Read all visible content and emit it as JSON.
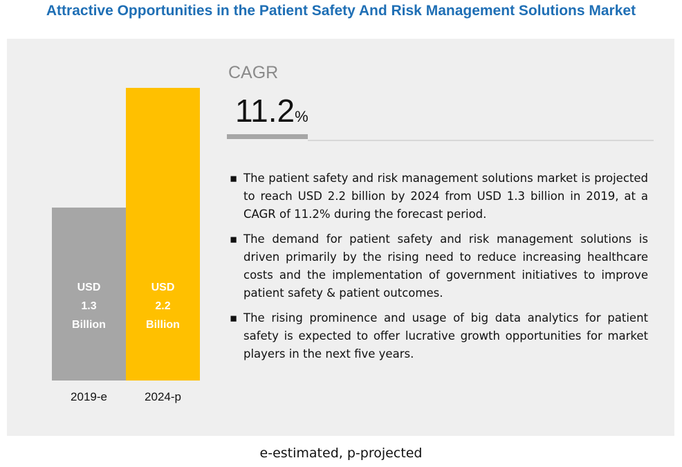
{
  "chart_data": {
    "type": "bar",
    "title": "Attractive Opportunities in the Patient Safety And Risk Management Solutions Market",
    "categories": [
      "2019-e",
      "2024-p"
    ],
    "values": [
      1.3,
      2.2
    ],
    "value_labels": [
      "USD 1.3 Billion",
      "USD 2.2 Billion"
    ],
    "colors": [
      "#a6a6a6",
      "#ffc000"
    ],
    "cagr_label": "CAGR",
    "cagr_value": "11.2",
    "cagr_unit": "%",
    "bullets": [
      "The patient safety and risk management solutions market is projected to reach USD 2.2 billion by 2024 from USD 1.3 billion in 2019, at a CAGR of 11.2% during the forecast period.",
      "The demand for patient safety and risk management solutions is driven primarily by the rising need to reduce increasing healthcare costs and the implementation of government initiatives to improve patient safety & patient outcomes.",
      "The rising prominence and usage of big data analytics for patient safety is expected to offer lucrative growth opportunities for market players in the next five years."
    ],
    "footnote": "e-estimated, p-projected"
  }
}
